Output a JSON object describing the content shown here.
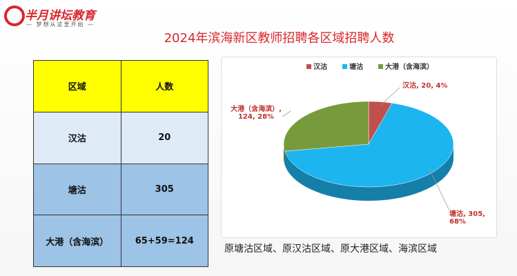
{
  "header": {
    "logo": "半月讲坛教育",
    "tagline": "— 梦想从这里开始 —"
  },
  "table": {
    "header": [
      "区域",
      "人数"
    ],
    "rows": [
      [
        "汉沽",
        "20"
      ],
      [
        "塘沽",
        "305"
      ],
      [
        "大港（含海滨）",
        "65+59=124"
      ]
    ]
  },
  "caption": "原塘沽区域、原汉沽区域、原大港区域、海滨区域",
  "chart_data": {
    "type": "pie",
    "title": "2024年滨海新区教师招聘各区域招聘人数",
    "categories": [
      "汉沽",
      "塘沽",
      "大港（含海滨）"
    ],
    "values": [
      20,
      305,
      124
    ],
    "value_labels": [
      "汉沽, 20, 4%",
      "塘沽, 305, 68%",
      "大港（含海滨）, 124, 28%"
    ],
    "colors": [
      "#c0504d",
      "#1cb5f0",
      "#779a3c"
    ],
    "legend": "top"
  }
}
